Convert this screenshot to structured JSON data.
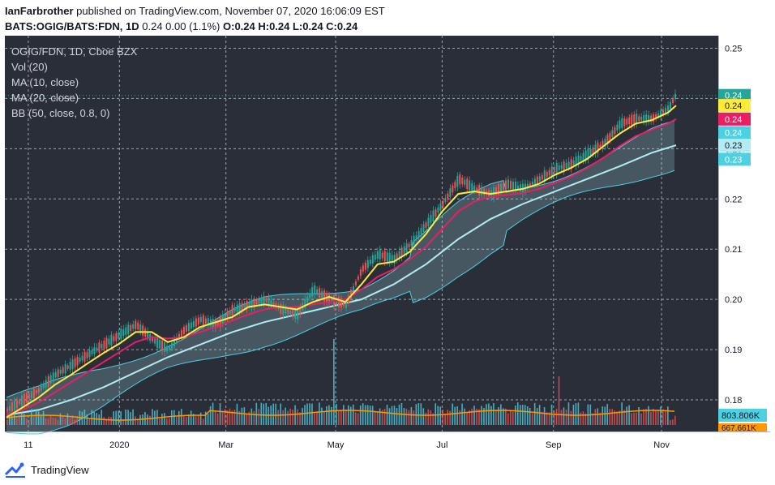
{
  "header": {
    "author": "IanFarbrother",
    "published": "published on TradingView.com, November 07, 2020 16:06:09 EST",
    "symbol": "BATS:OGIG/BATS:FDN, 1D",
    "quote": "0.24 0.00 (1.1%)",
    "ohlc": "O:0.24 H:0.24 L:0.24 C:0.24"
  },
  "legend": {
    "symbol": "OGIG/FDN, 1D, Cboe BZX",
    "vol": "Vol (20)",
    "ma10": "MA (10, close)",
    "ma20": "MA (20, close)",
    "bb": "BB (50, close, 0.8, 0)"
  },
  "footer": {
    "brand": "TradingView"
  },
  "colors": {
    "background": "#2a2e39",
    "up": "#26a69a",
    "down": "#ef5350",
    "ma10": "#ffeb3b",
    "ma20": "#e91e63",
    "bb_basis": "#b2ebf2",
    "bb_band": "#4dd0e1",
    "volume_ma": "#ff9800",
    "volume_up": "#4dd0e1",
    "volume_down": "#ef5350"
  },
  "chart_data": {
    "type": "line",
    "title": "OGIG/FDN, 1D, Cboe BZX",
    "x_tick_labels": [
      "11",
      "2020",
      "Mar",
      "May",
      "Jul",
      "Sep",
      "Nov"
    ],
    "y_tick_labels": [
      "0.25",
      "0.24",
      "0.23",
      "0.22",
      "0.21",
      "0.20",
      "0.19",
      "0.18"
    ],
    "ylim": [
      0.175,
      0.2525
    ],
    "grid": true,
    "price_scale_badges": [
      {
        "label": "0.24",
        "value": 0.2406,
        "color": "#26a69a"
      },
      {
        "label": "0.24",
        "value": 0.2386,
        "color": "#ffeb3b"
      },
      {
        "label": "0.24",
        "value": 0.2359,
        "color": "#e91e63"
      },
      {
        "label": "0.24",
        "value": 0.2332,
        "color": "#4dd0e1"
      },
      {
        "label": "0.23",
        "value": 0.2307,
        "color": "#b2ebf2"
      },
      {
        "label": "0.23",
        "value": 0.2279,
        "color": "#4dd0e1"
      }
    ],
    "volume_badges": [
      {
        "label": "803.806K",
        "color": "#4dd0e1"
      },
      {
        "label": "667.661K",
        "color": "#ff9800"
      }
    ],
    "series": [
      {
        "name": "Price",
        "values": [
          [
            0,
            0.178
          ],
          [
            20,
            0.18
          ],
          [
            40,
            0.182
          ],
          [
            60,
            0.185
          ],
          [
            80,
            0.187
          ],
          [
            100,
            0.189
          ],
          [
            120,
            0.191
          ],
          [
            140,
            0.193
          ],
          [
            160,
            0.195
          ],
          [
            180,
            0.192
          ],
          [
            200,
            0.19
          ],
          [
            220,
            0.194
          ],
          [
            240,
            0.196
          ],
          [
            260,
            0.195
          ],
          [
            280,
            0.198
          ],
          [
            300,
            0.199
          ],
          [
            320,
            0.2
          ],
          [
            340,
            0.198
          ],
          [
            360,
            0.197
          ],
          [
            380,
            0.202
          ],
          [
            400,
            0.2
          ],
          [
            420,
            0.199
          ],
          [
            440,
            0.206
          ],
          [
            460,
            0.209
          ],
          [
            480,
            0.208
          ],
          [
            500,
            0.211
          ],
          [
            520,
            0.215
          ],
          [
            540,
            0.219
          ],
          [
            560,
            0.224
          ],
          [
            580,
            0.222
          ],
          [
            600,
            0.221
          ],
          [
            620,
            0.223
          ],
          [
            640,
            0.222
          ],
          [
            660,
            0.224
          ],
          [
            680,
            0.226
          ],
          [
            700,
            0.227
          ],
          [
            720,
            0.229
          ],
          [
            740,
            0.231
          ],
          [
            760,
            0.235
          ],
          [
            780,
            0.236
          ],
          [
            800,
            0.236
          ],
          [
            820,
            0.238
          ],
          [
            830,
            0.241
          ]
        ]
      },
      {
        "name": "MA (10, close)",
        "values": [
          [
            0,
            0.1765
          ],
          [
            20,
            0.1785
          ],
          [
            40,
            0.1805
          ],
          [
            60,
            0.183
          ],
          [
            80,
            0.185
          ],
          [
            100,
            0.1872
          ],
          [
            120,
            0.1893
          ],
          [
            140,
            0.1912
          ],
          [
            160,
            0.1935
          ],
          [
            180,
            0.1935
          ],
          [
            200,
            0.1915
          ],
          [
            220,
            0.1925
          ],
          [
            240,
            0.1945
          ],
          [
            260,
            0.1955
          ],
          [
            280,
            0.1965
          ],
          [
            300,
            0.1985
          ],
          [
            320,
            0.199
          ],
          [
            340,
            0.1985
          ],
          [
            360,
            0.198
          ],
          [
            380,
            0.1995
          ],
          [
            400,
            0.2005
          ],
          [
            420,
            0.1995
          ],
          [
            440,
            0.203
          ],
          [
            460,
            0.207
          ],
          [
            480,
            0.2075
          ],
          [
            500,
            0.2095
          ],
          [
            520,
            0.213
          ],
          [
            540,
            0.2175
          ],
          [
            560,
            0.221
          ],
          [
            580,
            0.2215
          ],
          [
            600,
            0.221
          ],
          [
            620,
            0.2215
          ],
          [
            640,
            0.222
          ],
          [
            660,
            0.223
          ],
          [
            680,
            0.2248
          ],
          [
            700,
            0.2262
          ],
          [
            720,
            0.228
          ],
          [
            740,
            0.2305
          ],
          [
            760,
            0.233
          ],
          [
            780,
            0.235
          ],
          [
            800,
            0.2357
          ],
          [
            820,
            0.2372
          ],
          [
            830,
            0.2386
          ]
        ]
      },
      {
        "name": "MA (20, close)",
        "values": [
          [
            0,
            0.177
          ],
          [
            20,
            0.178
          ],
          [
            40,
            0.1795
          ],
          [
            60,
            0.1815
          ],
          [
            80,
            0.1835
          ],
          [
            100,
            0.1855
          ],
          [
            120,
            0.1875
          ],
          [
            140,
            0.1895
          ],
          [
            160,
            0.1915
          ],
          [
            180,
            0.1925
          ],
          [
            200,
            0.1922
          ],
          [
            220,
            0.1925
          ],
          [
            240,
            0.1935
          ],
          [
            260,
            0.1945
          ],
          [
            280,
            0.1958
          ],
          [
            300,
            0.197
          ],
          [
            320,
            0.198
          ],
          [
            340,
            0.1985
          ],
          [
            360,
            0.1985
          ],
          [
            380,
            0.199
          ],
          [
            400,
            0.1995
          ],
          [
            420,
            0.2
          ],
          [
            440,
            0.202
          ],
          [
            460,
            0.2045
          ],
          [
            480,
            0.206
          ],
          [
            500,
            0.208
          ],
          [
            520,
            0.2105
          ],
          [
            540,
            0.214
          ],
          [
            560,
            0.2175
          ],
          [
            580,
            0.2195
          ],
          [
            600,
            0.2205
          ],
          [
            620,
            0.2208
          ],
          [
            640,
            0.2212
          ],
          [
            660,
            0.222
          ],
          [
            680,
            0.2232
          ],
          [
            700,
            0.2245
          ],
          [
            720,
            0.2262
          ],
          [
            740,
            0.2282
          ],
          [
            760,
            0.2305
          ],
          [
            780,
            0.2325
          ],
          [
            800,
            0.2338
          ],
          [
            820,
            0.235
          ],
          [
            830,
            0.2359
          ]
        ]
      },
      {
        "name": "BB (50, close, 0.8, 0)",
        "values": [
          [
            0,
            0.177
          ],
          [
            40,
            0.178
          ],
          [
            80,
            0.18
          ],
          [
            120,
            0.1825
          ],
          [
            160,
            0.1855
          ],
          [
            200,
            0.1885
          ],
          [
            240,
            0.191
          ],
          [
            280,
            0.1935
          ],
          [
            320,
            0.1955
          ],
          [
            360,
            0.197
          ],
          [
            400,
            0.1985
          ],
          [
            440,
            0.2
          ],
          [
            480,
            0.203
          ],
          [
            520,
            0.207
          ],
          [
            560,
            0.212
          ],
          [
            600,
            0.216
          ],
          [
            640,
            0.219
          ],
          [
            680,
            0.2215
          ],
          [
            720,
            0.224
          ],
          [
            760,
            0.2265
          ],
          [
            800,
            0.2292
          ],
          [
            830,
            0.2307
          ]
        ]
      }
    ]
  }
}
